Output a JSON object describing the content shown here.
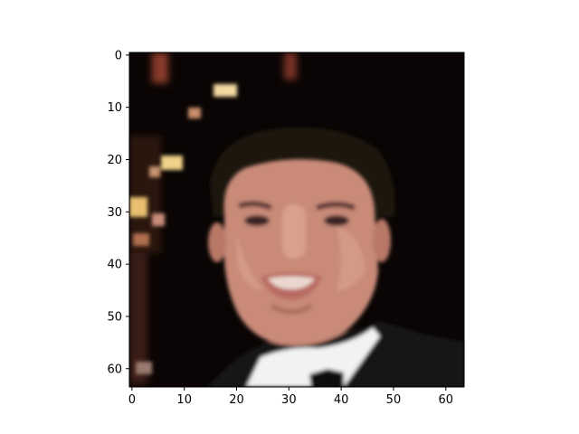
{
  "chart_data": {
    "type": "heatmap",
    "title": "",
    "xlabel": "",
    "ylabel": "",
    "image_shape": [
      64,
      64
    ],
    "xlim": [
      -0.5,
      63.5
    ],
    "ylim": [
      63.5,
      -0.5
    ],
    "x_ticks": [
      0,
      10,
      20,
      30,
      40,
      50,
      60
    ],
    "y_ticks": [
      0,
      10,
      20,
      30,
      40,
      50,
      60
    ],
    "x_tick_labels": [
      "0",
      "10",
      "20",
      "30",
      "40",
      "50",
      "60"
    ],
    "y_tick_labels": [
      "0",
      "10",
      "20",
      "30",
      "40",
      "50",
      "60"
    ],
    "grid": false,
    "legend": "none",
    "colors": {
      "background": "#0a0504",
      "hair": "#1a1210",
      "skin": "#c98a78",
      "skin_light": "#d9a08e",
      "skin_shadow": "#a86a5a",
      "lips": "#b86a62",
      "teeth": "#ead8cf",
      "eyes": "#3a2420",
      "shirt": "#f2f2f2",
      "suit": "#141414",
      "bowtie": "#080808",
      "bokeh_warm": "#f2d9a0",
      "bokeh_red": "#8a3b2b"
    }
  }
}
